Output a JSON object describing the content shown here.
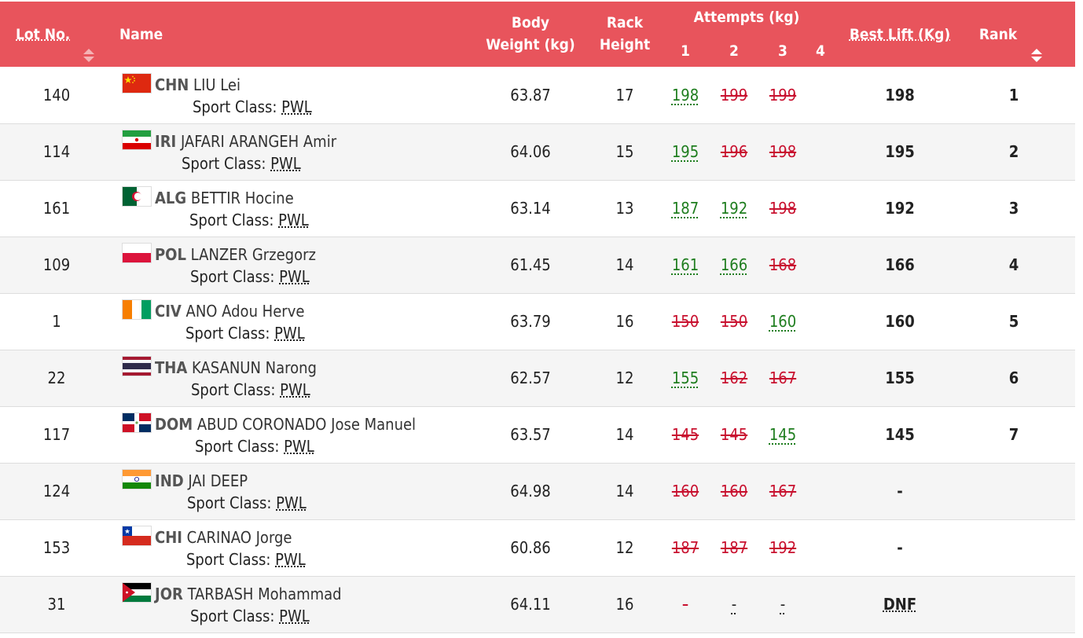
{
  "header": {
    "lot_no": "Lot No.",
    "name": "Name",
    "body_weight_l1": "Body",
    "body_weight_l2": "Weight (kg)",
    "rack_l1": "Rack",
    "rack_l2": "Height",
    "attempts": "Attempts (kg)",
    "att1": "1",
    "att2": "2",
    "att3": "3",
    "att4": "4",
    "best_lift": "Best Lift (Kg)",
    "rank": "Rank"
  },
  "sport_class_label": "Sport Class:",
  "colors": {
    "header_bg": "#e8545c",
    "good": "#1e7d1e",
    "bad": "#c8102e"
  },
  "rows": [
    {
      "lot": "140",
      "code": "CHN",
      "name": "LIU Lei",
      "flag": "china-flag-icon",
      "sport_class": "PWL",
      "body_weight": "63.87",
      "rack": "17",
      "a1": "198",
      "a1_ok": true,
      "a2": "199",
      "a2_ok": false,
      "a3": "199",
      "a3_ok": false,
      "best": "198",
      "rank": "1"
    },
    {
      "lot": "114",
      "code": "IRI",
      "name": "JAFARI ARANGEH Amir",
      "flag": "iran-flag-icon",
      "sport_class": "PWL",
      "body_weight": "64.06",
      "rack": "15",
      "a1": "195",
      "a1_ok": true,
      "a2": "196",
      "a2_ok": false,
      "a3": "198",
      "a3_ok": false,
      "best": "195",
      "rank": "2"
    },
    {
      "lot": "161",
      "code": "ALG",
      "name": "BETTIR Hocine",
      "flag": "algeria-flag-icon",
      "sport_class": "PWL",
      "body_weight": "63.14",
      "rack": "13",
      "a1": "187",
      "a1_ok": true,
      "a2": "192",
      "a2_ok": true,
      "a3": "198",
      "a3_ok": false,
      "best": "192",
      "rank": "3"
    },
    {
      "lot": "109",
      "code": "POL",
      "name": "LANZER Grzegorz",
      "flag": "poland-flag-icon",
      "sport_class": "PWL",
      "body_weight": "61.45",
      "rack": "14",
      "a1": "161",
      "a1_ok": true,
      "a2": "166",
      "a2_ok": true,
      "a3": "168",
      "a3_ok": false,
      "best": "166",
      "rank": "4"
    },
    {
      "lot": "1",
      "code": "CIV",
      "name": "ANO Adou Herve",
      "flag": "cote-divoire-flag-icon",
      "sport_class": "PWL",
      "body_weight": "63.79",
      "rack": "16",
      "a1": "150",
      "a1_ok": false,
      "a2": "150",
      "a2_ok": false,
      "a3": "160",
      "a3_ok": true,
      "best": "160",
      "rank": "5"
    },
    {
      "lot": "22",
      "code": "THA",
      "name": "KASANUN Narong",
      "flag": "thailand-flag-icon",
      "sport_class": "PWL",
      "body_weight": "62.57",
      "rack": "12",
      "a1": "155",
      "a1_ok": true,
      "a2": "162",
      "a2_ok": false,
      "a3": "167",
      "a3_ok": false,
      "best": "155",
      "rank": "6"
    },
    {
      "lot": "117",
      "code": "DOM",
      "name": "ABUD CORONADO Jose Manuel",
      "flag": "dominican-republic-flag-icon",
      "sport_class": "PWL",
      "body_weight": "63.57",
      "rack": "14",
      "a1": "145",
      "a1_ok": false,
      "a2": "145",
      "a2_ok": false,
      "a3": "145",
      "a3_ok": true,
      "best": "145",
      "rank": "7"
    },
    {
      "lot": "124",
      "code": "IND",
      "name": "JAI DEEP",
      "flag": "india-flag-icon",
      "sport_class": "PWL",
      "body_weight": "64.98",
      "rack": "14",
      "a1": "160",
      "a1_ok": false,
      "a2": "160",
      "a2_ok": false,
      "a3": "167",
      "a3_ok": false,
      "best": "-",
      "rank": ""
    },
    {
      "lot": "153",
      "code": "CHI",
      "name": "CARINAO Jorge",
      "flag": "chile-flag-icon",
      "sport_class": "PWL",
      "body_weight": "60.86",
      "rack": "12",
      "a1": "187",
      "a1_ok": false,
      "a2": "187",
      "a2_ok": false,
      "a3": "192",
      "a3_ok": false,
      "best": "-",
      "rank": ""
    },
    {
      "lot": "31",
      "code": "JOR",
      "name": "TARBASH Mohammad",
      "flag": "jordan-flag-icon",
      "sport_class": "PWL",
      "body_weight": "64.11",
      "rack": "16",
      "a1": "-",
      "a1_ok": false,
      "a2": "-",
      "a2_ok": null,
      "a3": "-",
      "a3_ok": null,
      "best": "DNF",
      "rank": ""
    }
  ]
}
